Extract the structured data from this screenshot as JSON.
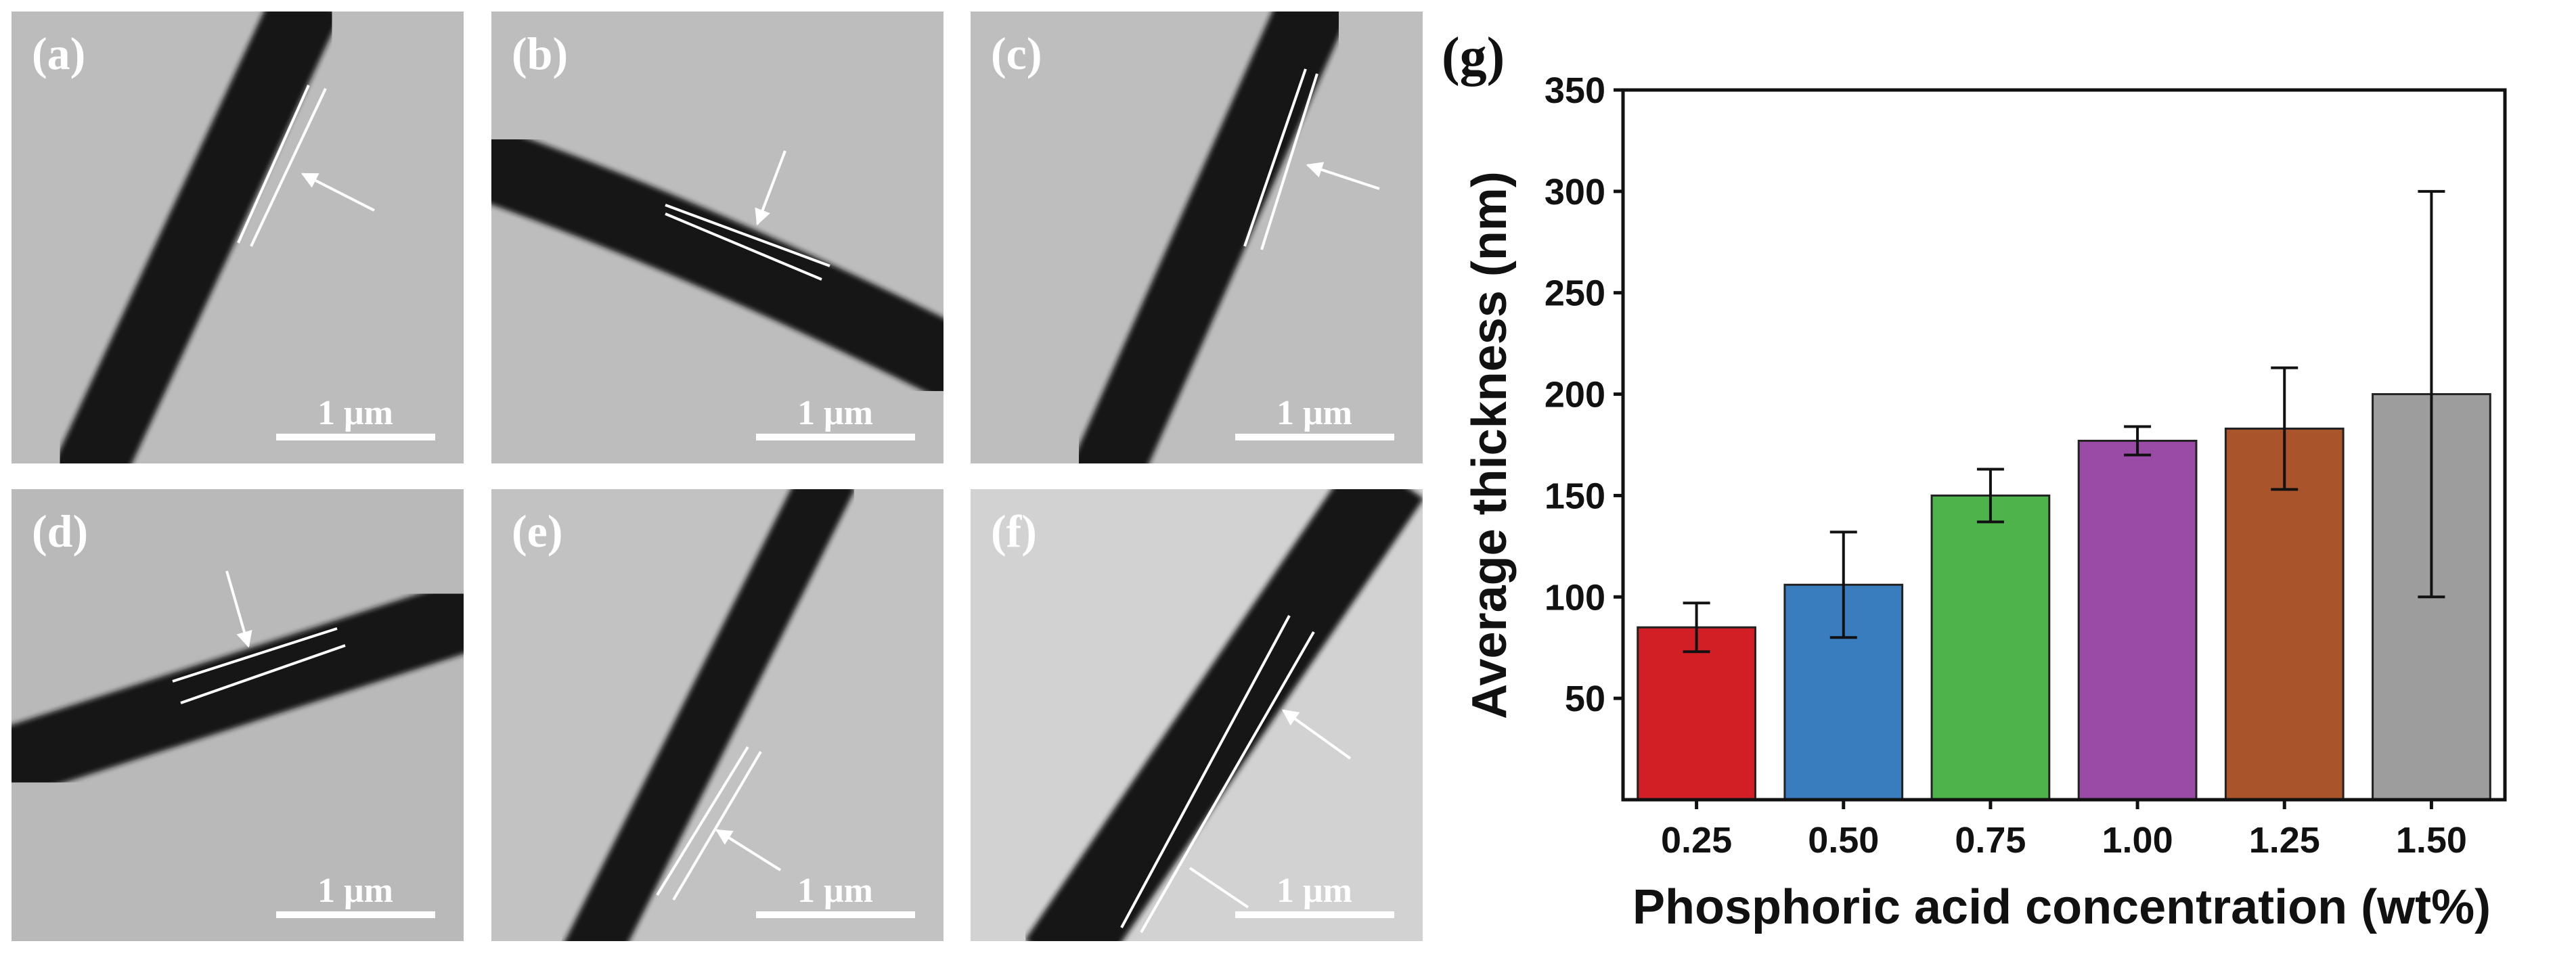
{
  "panels": [
    {
      "label": "(a)",
      "scale_bar": "1 μm"
    },
    {
      "label": "(b)",
      "scale_bar": "1 μm"
    },
    {
      "label": "(c)",
      "scale_bar": "1 μm"
    },
    {
      "label": "(d)",
      "scale_bar": "1 μm"
    },
    {
      "label": "(e)",
      "scale_bar": "1 μm"
    },
    {
      "label": "(f)",
      "scale_bar": "1 μm"
    }
  ],
  "chart_data": {
    "type": "bar",
    "label": "(g)",
    "x_label": "Phosphoric acid concentration (wt%)",
    "y_label": "Average thickness (nm)",
    "categories": [
      "0.25",
      "0.50",
      "0.75",
      "1.00",
      "1.25",
      "1.50"
    ],
    "values": [
      85,
      106,
      150,
      177,
      183,
      200
    ],
    "errors": [
      12,
      26,
      13,
      7,
      30,
      100
    ],
    "colors": [
      "#d21f26",
      "#3a7dbf",
      "#4db34a",
      "#9a4ba6",
      "#a9542a",
      "#9d9d9d"
    ],
    "ylim": [
      0,
      350
    ],
    "yticks": [
      50,
      100,
      150,
      200,
      250,
      300,
      350
    ]
  }
}
